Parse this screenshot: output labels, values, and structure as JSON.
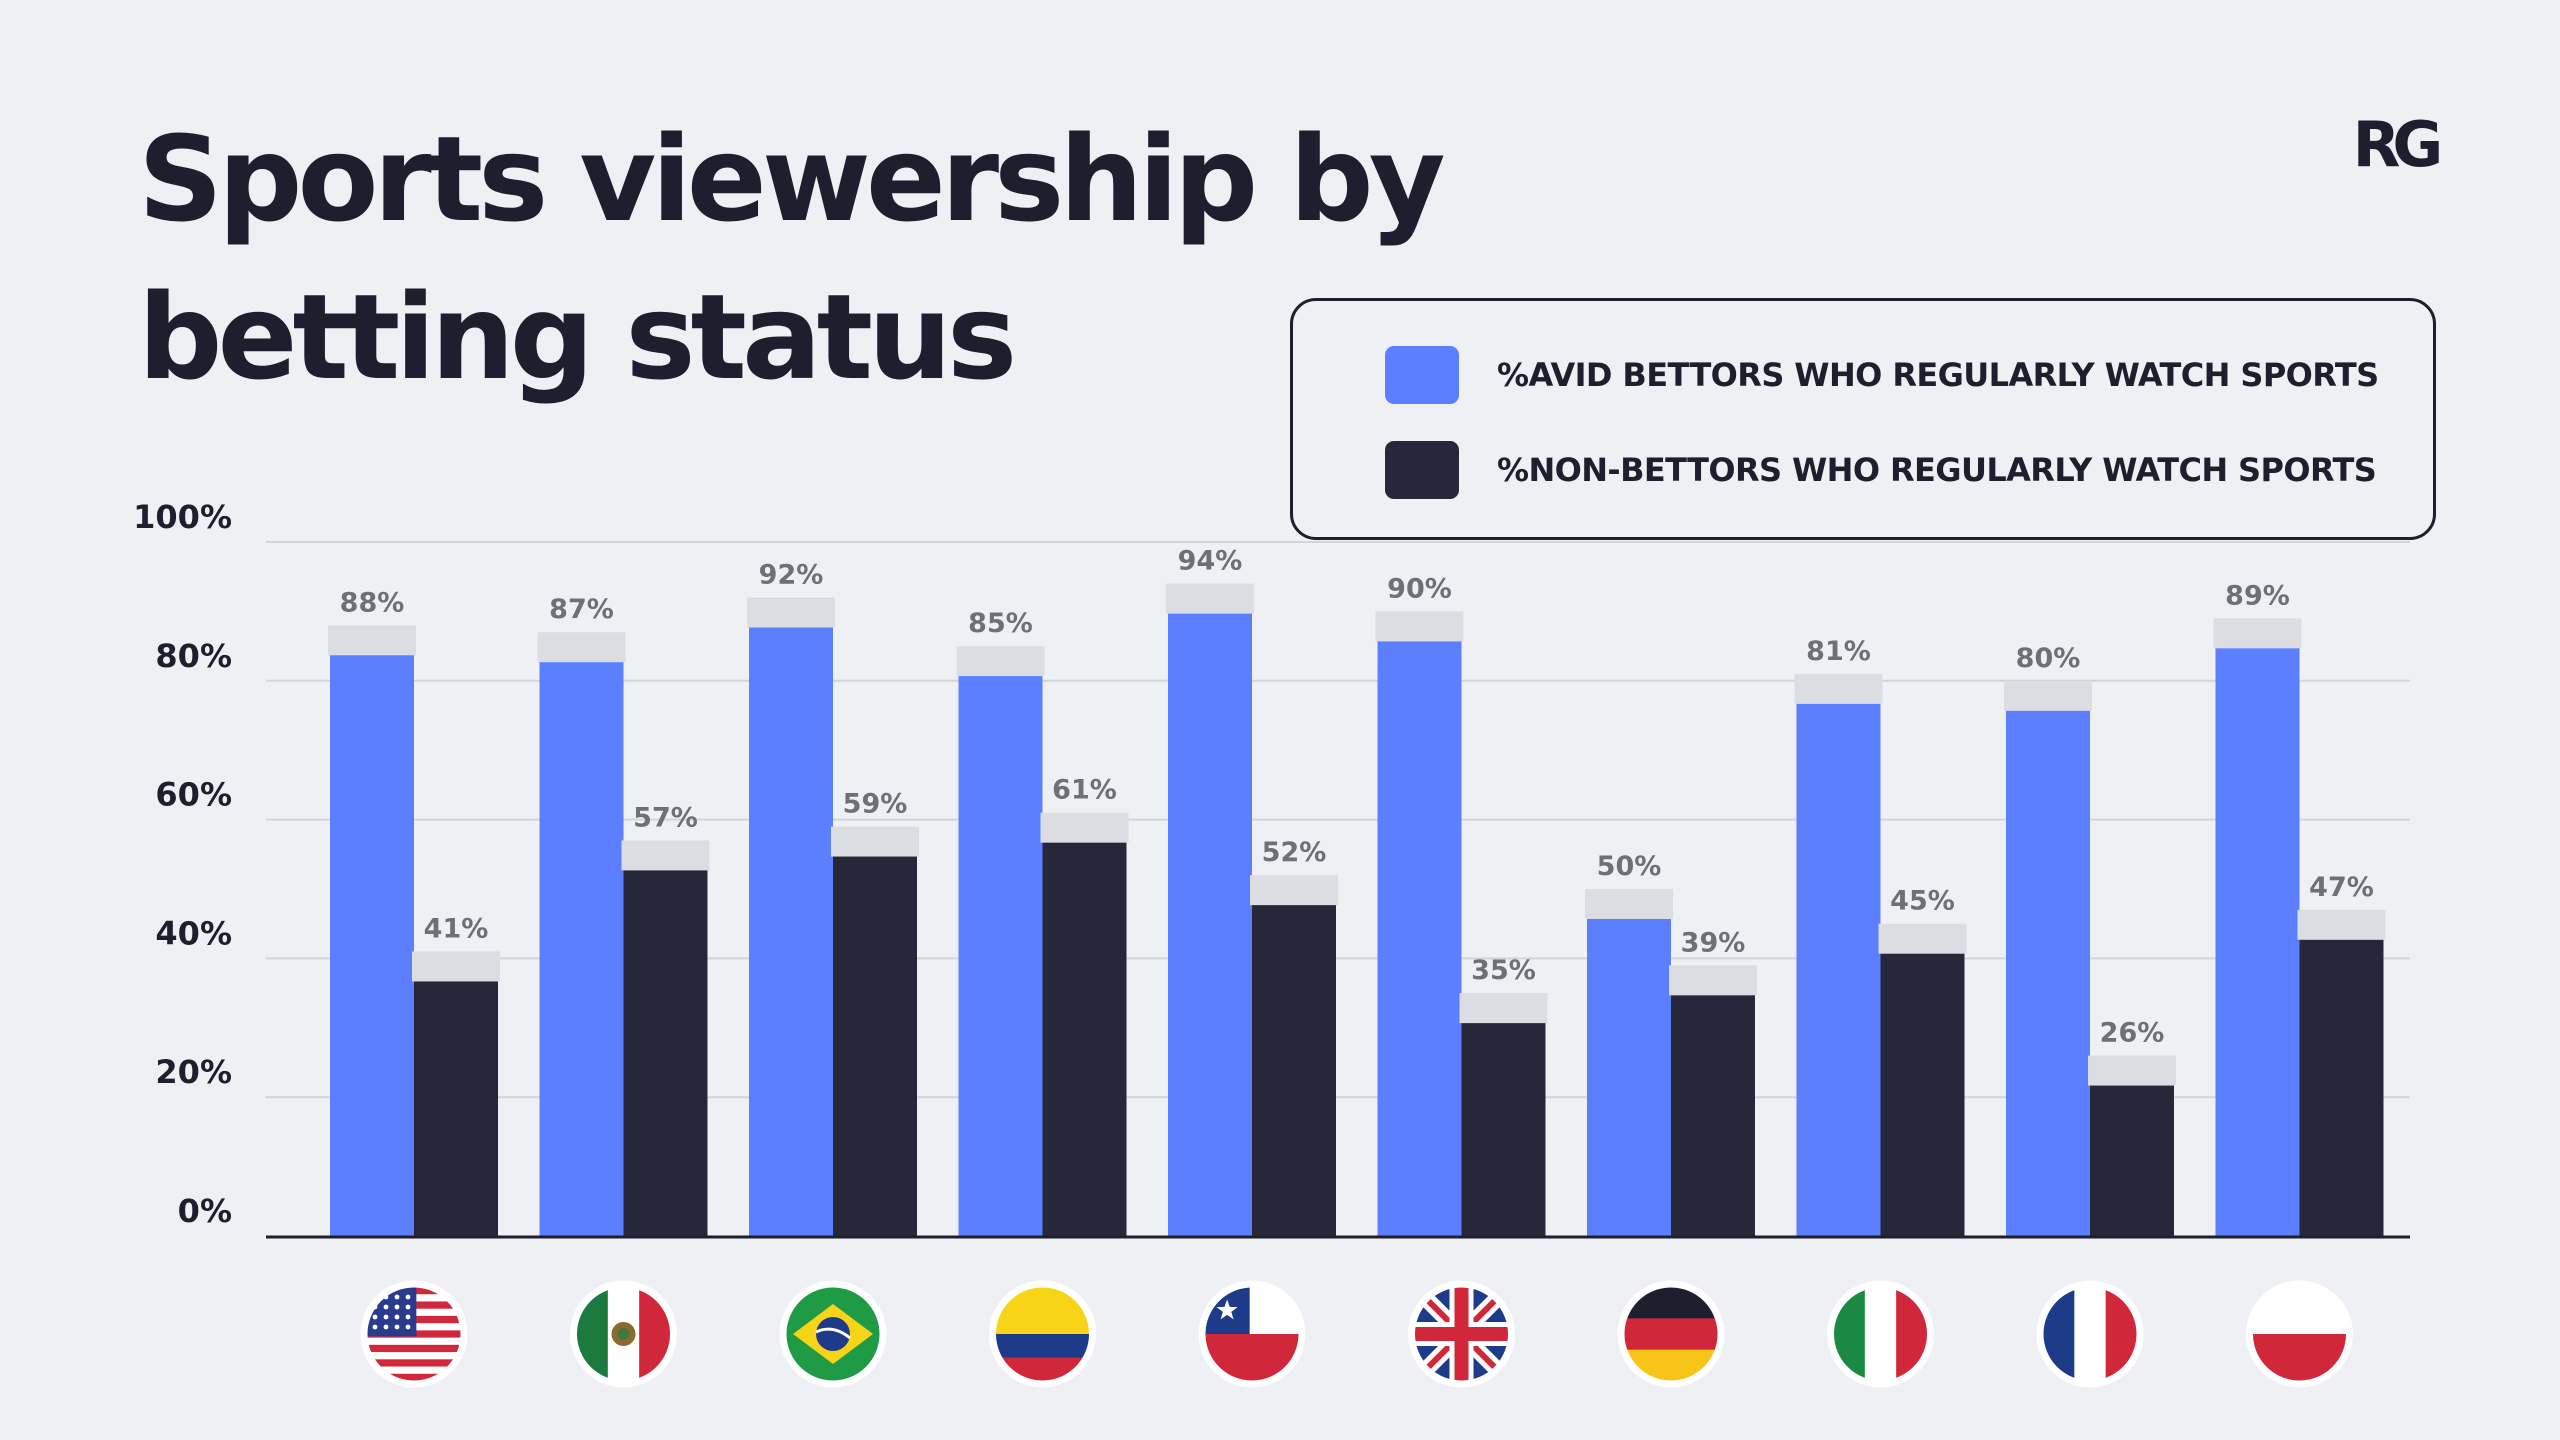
{
  "title": "Sports viewership by betting status",
  "logo_text": "RG",
  "colors": {
    "avid": "#5b7ffe",
    "non": "#262739",
    "cap": "#dcdde3",
    "grid": "#d3d4da",
    "axis": "#1e1f2e",
    "background": "#eff0f4"
  },
  "legend": {
    "avid_label": "%AVID BETTORS WHO REGULARLY WATCH SPORTS",
    "non_label": "%NON-BETTORS WHO REGULARLY WATCH SPORTS"
  },
  "chart_data": {
    "type": "bar",
    "title": "Sports viewership by betting status",
    "xlabel": "",
    "ylabel": "",
    "ylim": [
      0,
      100
    ],
    "yticks": [
      "0%",
      "20%",
      "40%",
      "60%",
      "80%",
      "100%"
    ],
    "grid": true,
    "legend_position": "top-right",
    "categories": [
      {
        "country": "United States",
        "flag": "us-flag-icon"
      },
      {
        "country": "Mexico",
        "flag": "mexico-flag-icon"
      },
      {
        "country": "Brazil",
        "flag": "brazil-flag-icon"
      },
      {
        "country": "Colombia",
        "flag": "colombia-flag-icon"
      },
      {
        "country": "Chile",
        "flag": "chile-flag-icon"
      },
      {
        "country": "United Kingdom",
        "flag": "uk-flag-icon"
      },
      {
        "country": "Germany",
        "flag": "germany-flag-icon"
      },
      {
        "country": "Italy",
        "flag": "italy-flag-icon"
      },
      {
        "country": "France",
        "flag": "france-flag-icon"
      },
      {
        "country": "Poland",
        "flag": "poland-flag-icon"
      }
    ],
    "series": [
      {
        "name": "%AVID BETTORS WHO REGULARLY WATCH SPORTS",
        "color": "#5b7ffe",
        "values": [
          88,
          87,
          92,
          85,
          94,
          90,
          50,
          81,
          80,
          89
        ],
        "labels": [
          "88%",
          "87%",
          "92%",
          "85%",
          "94%",
          "90%",
          "50%",
          "81%",
          "80%",
          "89%"
        ]
      },
      {
        "name": "%NON-BETTORS WHO REGULARLY WATCH SPORTS",
        "color": "#262739",
        "values": [
          41,
          57,
          59,
          61,
          52,
          35,
          39,
          45,
          26,
          47
        ],
        "labels": [
          "41%",
          "57%",
          "59%",
          "61%",
          "52%",
          "35%",
          "39%",
          "45%",
          "26%",
          "47%"
        ]
      }
    ]
  }
}
